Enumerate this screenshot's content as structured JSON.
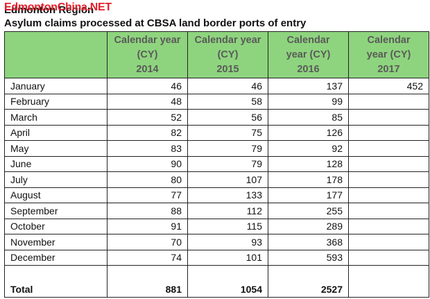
{
  "header": {
    "region": "Edmonton Region",
    "watermark": "EdmontonChina.NET",
    "title": "Asylum claims processed at CBSA land border ports of entry"
  },
  "table": {
    "columns": [
      {
        "line1": "Calendar year",
        "line2": "(CY)",
        "line3": "2014"
      },
      {
        "line1": "Calendar year",
        "line2": "(CY)",
        "line3": "2015"
      },
      {
        "line1": "Calendar",
        "line2": "year (CY)",
        "line3": "2016"
      },
      {
        "line1": "Calendar",
        "line2": "year (CY)",
        "line3": "2017"
      }
    ],
    "rows": [
      {
        "month": "January",
        "values": [
          "46",
          "46",
          "137",
          "452"
        ]
      },
      {
        "month": "February",
        "values": [
          "48",
          "58",
          "99",
          ""
        ]
      },
      {
        "month": "March",
        "values": [
          "52",
          "56",
          "85",
          ""
        ]
      },
      {
        "month": "April",
        "values": [
          "82",
          "75",
          "126",
          ""
        ]
      },
      {
        "month": "May",
        "values": [
          "83",
          "79",
          "92",
          ""
        ]
      },
      {
        "month": "June",
        "values": [
          "90",
          "79",
          "128",
          ""
        ]
      },
      {
        "month": "July",
        "values": [
          "80",
          "107",
          "178",
          ""
        ]
      },
      {
        "month": "August",
        "values": [
          "77",
          "133",
          "177",
          ""
        ]
      },
      {
        "month": "September",
        "values": [
          "88",
          "112",
          "255",
          ""
        ]
      },
      {
        "month": "October",
        "values": [
          "91",
          "115",
          "289",
          ""
        ]
      },
      {
        "month": "November",
        "values": [
          "70",
          "93",
          "368",
          ""
        ]
      },
      {
        "month": "December",
        "values": [
          "74",
          "101",
          "593",
          ""
        ]
      }
    ],
    "total": {
      "label": "Total",
      "values": [
        "881",
        "1054",
        "2527",
        ""
      ]
    }
  },
  "colors": {
    "header_fill": "#8ed47e",
    "watermark": "#e3202b"
  }
}
